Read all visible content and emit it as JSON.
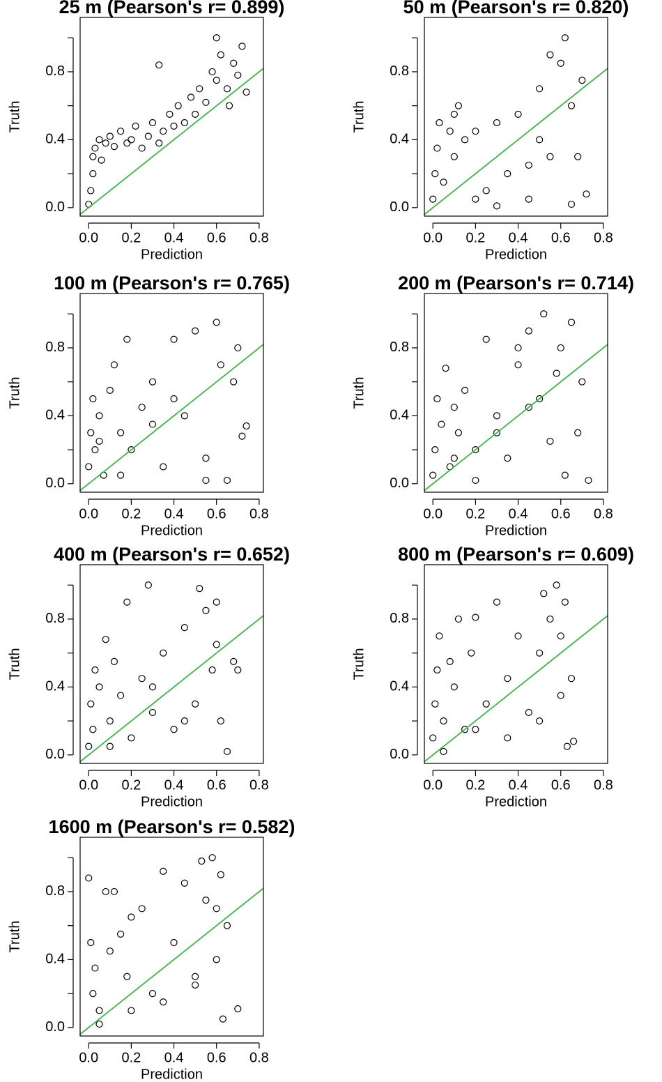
{
  "chart_data": [
    {
      "type": "scatter",
      "title": "25 m (Pearson's r= 0.899)",
      "xlabel": "Prediction",
      "ylabel": "Truth",
      "x": [
        0,
        0.01,
        0.02,
        0.02,
        0.03,
        0.05,
        0.06,
        0.08,
        0.1,
        0.12,
        0.15,
        0.18,
        0.2,
        0.22,
        0.25,
        0.28,
        0.3,
        0.33,
        0.35,
        0.38,
        0.4,
        0.42,
        0.45,
        0.48,
        0.5,
        0.52,
        0.55,
        0.58,
        0.6,
        0.62,
        0.65,
        0.68,
        0.7,
        0.72,
        0.74,
        0.33,
        0.6,
        0.66
      ],
      "y": [
        0.02,
        0.1,
        0.2,
        0.3,
        0.35,
        0.4,
        0.28,
        0.38,
        0.42,
        0.36,
        0.45,
        0.38,
        0.4,
        0.48,
        0.35,
        0.42,
        0.5,
        0.38,
        0.45,
        0.55,
        0.48,
        0.6,
        0.5,
        0.65,
        0.55,
        0.7,
        0.62,
        0.8,
        0.75,
        0.9,
        0.7,
        0.85,
        0.78,
        0.95,
        0.68,
        0.84,
        1.0,
        0.6
      ],
      "xlim": [
        -0.04,
        0.82
      ],
      "ylim": [
        -0.05,
        1.12
      ],
      "xticks": [
        {
          "value": 0,
          "label": "0.0"
        },
        0.2,
        0.4,
        0.6,
        0.8
      ],
      "yticks": [
        {
          "value": 0,
          "label": "0.0"
        },
        0.4,
        0.8
      ],
      "yminorticks": [
        0.2,
        0.6,
        1.0
      ],
      "marker_color": "#000000",
      "reference_line": {
        "intercept": 0,
        "slope": 1,
        "color": "#3cb44b"
      }
    },
    {
      "type": "scatter",
      "title": "50 m (Pearson's r= 0.820)",
      "xlabel": "Prediction",
      "ylabel": "Truth",
      "x": [
        0,
        0.01,
        0.02,
        0.03,
        0.05,
        0.08,
        0.1,
        0.12,
        0.15,
        0.2,
        0.25,
        0.3,
        0.35,
        0.4,
        0.45,
        0.5,
        0.55,
        0.6,
        0.62,
        0.65,
        0.7,
        0.72,
        0.3,
        0.45,
        0.55,
        0.65,
        0.2,
        0.1,
        0.5,
        0.68
      ],
      "y": [
        0.05,
        0.2,
        0.35,
        0.5,
        0.15,
        0.45,
        0.3,
        0.6,
        0.4,
        0.45,
        0.1,
        0.5,
        0.2,
        0.55,
        0.05,
        0.7,
        0.3,
        0.85,
        1.0,
        0.6,
        0.75,
        0.08,
        0.01,
        0.25,
        0.9,
        0.02,
        0.05,
        0.55,
        0.4,
        0.3
      ],
      "xlim": [
        -0.04,
        0.82
      ],
      "ylim": [
        -0.05,
        1.12
      ],
      "xticks": [
        {
          "value": 0,
          "label": "0.0"
        },
        0.2,
        0.4,
        0.6,
        0.8
      ],
      "yticks": [
        {
          "value": 0,
          "label": "0.0"
        },
        0.4,
        0.8
      ],
      "yminorticks": [
        0.2,
        0.6,
        1.0
      ],
      "marker_color": "#000000",
      "reference_line": {
        "intercept": 0,
        "slope": 1,
        "color": "#3cb44b"
      }
    },
    {
      "type": "scatter",
      "title": "100 m (Pearson's r= 0.765)",
      "xlabel": "Prediction",
      "ylabel": "Truth",
      "x": [
        0,
        0.01,
        0.02,
        0.03,
        0.05,
        0.07,
        0.1,
        0.12,
        0.15,
        0.18,
        0.2,
        0.25,
        0.3,
        0.35,
        0.4,
        0.45,
        0.5,
        0.55,
        0.6,
        0.62,
        0.65,
        0.7,
        0.72,
        0.74,
        0.15,
        0.05,
        0.4,
        0.55,
        0.68,
        0.3
      ],
      "y": [
        0.1,
        0.3,
        0.5,
        0.2,
        0.4,
        0.05,
        0.55,
        0.7,
        0.3,
        0.85,
        0.2,
        0.45,
        0.6,
        0.1,
        0.85,
        0.4,
        0.9,
        0.15,
        0.95,
        0.7,
        0.02,
        0.8,
        0.28,
        0.34,
        0.05,
        0.25,
        0.5,
        0.02,
        0.6,
        0.35
      ],
      "xlim": [
        -0.04,
        0.82
      ],
      "ylim": [
        -0.05,
        1.12
      ],
      "xticks": [
        {
          "value": 0,
          "label": "0.0"
        },
        0.2,
        0.4,
        0.6,
        0.8
      ],
      "yticks": [
        {
          "value": 0,
          "label": "0.0"
        },
        0.4,
        0.8
      ],
      "yminorticks": [
        0.2,
        0.6,
        1.0
      ],
      "marker_color": "#000000",
      "reference_line": {
        "intercept": 0,
        "slope": 1,
        "color": "#3cb44b"
      }
    },
    {
      "type": "scatter",
      "title": "200 m (Pearson's r= 0.714)",
      "xlabel": "Prediction",
      "ylabel": "Truth",
      "x": [
        0,
        0.01,
        0.02,
        0.04,
        0.06,
        0.08,
        0.1,
        0.12,
        0.15,
        0.2,
        0.25,
        0.3,
        0.35,
        0.4,
        0.45,
        0.5,
        0.52,
        0.55,
        0.6,
        0.62,
        0.65,
        0.68,
        0.7,
        0.73,
        0.2,
        0.3,
        0.45,
        0.58,
        0.1,
        0.4
      ],
      "y": [
        0.05,
        0.2,
        0.5,
        0.35,
        0.68,
        0.1,
        0.45,
        0.3,
        0.55,
        0.2,
        0.85,
        0.4,
        0.15,
        0.7,
        0.9,
        0.5,
        1.0,
        0.25,
        0.8,
        0.05,
        0.95,
        0.3,
        0.6,
        0.02,
        0.02,
        0.3,
        0.45,
        0.65,
        0.15,
        0.8
      ],
      "xlim": [
        -0.04,
        0.82
      ],
      "ylim": [
        -0.05,
        1.12
      ],
      "xticks": [
        {
          "value": 0,
          "label": "0.0"
        },
        0.2,
        0.4,
        0.6,
        0.8
      ],
      "yticks": [
        {
          "value": 0,
          "label": "0.0"
        },
        0.4,
        0.8
      ],
      "yminorticks": [
        0.2,
        0.6,
        1.0
      ],
      "marker_color": "#000000",
      "reference_line": {
        "intercept": 0,
        "slope": 1,
        "color": "#3cb44b"
      }
    },
    {
      "type": "scatter",
      "title": "400 m (Pearson's r= 0.652)",
      "xlabel": "Prediction",
      "ylabel": "Truth",
      "x": [
        0,
        0.01,
        0.02,
        0.03,
        0.05,
        0.08,
        0.1,
        0.12,
        0.15,
        0.18,
        0.2,
        0.25,
        0.28,
        0.3,
        0.35,
        0.4,
        0.45,
        0.5,
        0.52,
        0.55,
        0.58,
        0.6,
        0.62,
        0.65,
        0.68,
        0.7,
        0.1,
        0.3,
        0.45,
        0.6
      ],
      "y": [
        0.05,
        0.3,
        0.15,
        0.5,
        0.4,
        0.68,
        0.2,
        0.55,
        0.35,
        0.9,
        0.1,
        0.45,
        1.0,
        0.25,
        0.6,
        0.15,
        0.75,
        0.3,
        0.98,
        0.85,
        0.5,
        0.9,
        0.2,
        0.02,
        0.55,
        0.5,
        0.05,
        0.4,
        0.2,
        0.65
      ],
      "xlim": [
        -0.04,
        0.82
      ],
      "ylim": [
        -0.05,
        1.12
      ],
      "xticks": [
        {
          "value": 0,
          "label": "0.0"
        },
        0.2,
        0.4,
        0.6,
        0.8
      ],
      "yticks": [
        {
          "value": 0,
          "label": "0.0"
        },
        0.4,
        0.8
      ],
      "yminorticks": [
        0.2,
        0.6,
        1.0
      ],
      "marker_color": "#000000",
      "reference_line": {
        "intercept": 0,
        "slope": 1,
        "color": "#3cb44b"
      }
    },
    {
      "type": "scatter",
      "title": "800 m (Pearson's r= 0.609)",
      "xlabel": "Prediction",
      "ylabel": "Truth",
      "x": [
        0,
        0.01,
        0.02,
        0.03,
        0.05,
        0.08,
        0.1,
        0.12,
        0.15,
        0.18,
        0.2,
        0.25,
        0.3,
        0.35,
        0.4,
        0.45,
        0.5,
        0.52,
        0.55,
        0.58,
        0.6,
        0.62,
        0.63,
        0.65,
        0.66,
        0.05,
        0.2,
        0.35,
        0.5,
        0.6
      ],
      "y": [
        0.1,
        0.3,
        0.5,
        0.7,
        0.2,
        0.55,
        0.4,
        0.8,
        0.15,
        0.6,
        0.81,
        0.3,
        0.9,
        0.45,
        0.7,
        0.25,
        0.6,
        0.95,
        0.8,
        1.0,
        0.35,
        0.9,
        0.05,
        0.45,
        0.08,
        0.02,
        0.15,
        0.1,
        0.2,
        0.7
      ],
      "xlim": [
        -0.04,
        0.82
      ],
      "ylim": [
        -0.05,
        1.12
      ],
      "xticks": [
        {
          "value": 0,
          "label": "0.0"
        },
        0.2,
        0.4,
        0.6,
        0.8
      ],
      "yticks": [
        {
          "value": 0,
          "label": "0.0"
        },
        0.4,
        0.8
      ],
      "yminorticks": [
        0.2,
        0.6,
        1.0
      ],
      "marker_color": "#000000",
      "reference_line": {
        "intercept": 0,
        "slope": 1,
        "color": "#3cb44b"
      }
    },
    {
      "type": "scatter",
      "title": "1600 m (Pearson's r= 0.582)",
      "xlabel": "Prediction",
      "ylabel": "Truth",
      "x": [
        0,
        0.01,
        0.02,
        0.03,
        0.05,
        0.08,
        0.1,
        0.12,
        0.15,
        0.18,
        0.2,
        0.25,
        0.3,
        0.35,
        0.4,
        0.45,
        0.5,
        0.53,
        0.55,
        0.58,
        0.6,
        0.62,
        0.63,
        0.65,
        0.7,
        0.05,
        0.2,
        0.35,
        0.5,
        0.6
      ],
      "y": [
        0.88,
        0.5,
        0.2,
        0.35,
        0.1,
        0.8,
        0.45,
        0.8,
        0.55,
        0.3,
        0.65,
        0.7,
        0.2,
        0.92,
        0.5,
        0.85,
        0.3,
        0.98,
        0.75,
        1.0,
        0.4,
        0.9,
        0.05,
        0.6,
        0.11,
        0.02,
        0.1,
        0.15,
        0.25,
        0.7
      ],
      "xlim": [
        -0.04,
        0.82
      ],
      "ylim": [
        -0.05,
        1.12
      ],
      "xticks": [
        {
          "value": 0,
          "label": "0.0"
        },
        0.2,
        0.4,
        0.6,
        0.8
      ],
      "yticks": [
        {
          "value": 0,
          "label": "0.0"
        },
        0.4,
        0.8
      ],
      "yminorticks": [
        0.2,
        0.6,
        1.0
      ],
      "marker_color": "#000000",
      "reference_line": {
        "intercept": 0,
        "slope": 1,
        "color": "#3cb44b"
      }
    }
  ]
}
